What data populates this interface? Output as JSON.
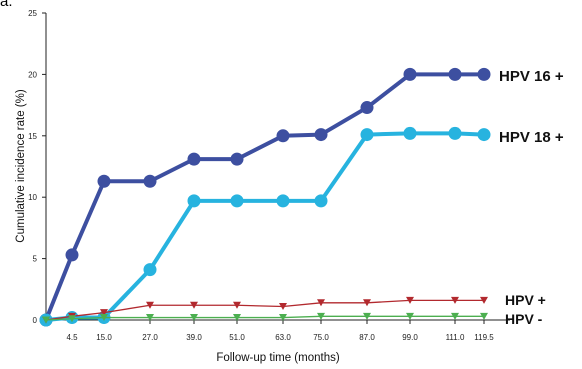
{
  "panel_label": "a.",
  "chart_data": {
    "type": "line",
    "title": "",
    "xlabel": "Follow-up time (months)",
    "ylabel": "Cumulative incidence rate (%)",
    "ylim": [
      0,
      25
    ],
    "yticks": [
      "0",
      "5",
      "10",
      "15",
      "20",
      "25"
    ],
    "x": [
      "4.5",
      "15.0",
      "27.0",
      "39.0",
      "51.0",
      "63.0",
      "75.0",
      "87.0",
      "99.0",
      "111.0",
      "119.5"
    ],
    "series": [
      {
        "name": "HPV 16 +",
        "color": "#3d4fa0",
        "marker": "circle",
        "origin": 0,
        "values": [
          5.3,
          11.3,
          11.3,
          13.1,
          13.1,
          15.0,
          15.1,
          17.3,
          20.0,
          20.0,
          20.0
        ]
      },
      {
        "name": "HPV 18 +",
        "color": "#27b3df",
        "marker": "circle",
        "origin": 0,
        "values": [
          0.2,
          0.2,
          4.1,
          9.7,
          9.7,
          9.7,
          9.7,
          15.1,
          15.2,
          15.2,
          15.1
        ]
      },
      {
        "name": "HPV +",
        "color": "#b2292e",
        "marker": "triangle-down",
        "origin": 0,
        "values": [
          0.3,
          0.6,
          1.2,
          1.2,
          1.2,
          1.1,
          1.4,
          1.4,
          1.6,
          1.6,
          1.6
        ]
      },
      {
        "name": "HPV -",
        "color": "#4caf50",
        "marker": "triangle-down",
        "origin": 0,
        "values": [
          0.1,
          0.2,
          0.2,
          0.2,
          0.2,
          0.2,
          0.3,
          0.3,
          0.3,
          0.3,
          0.3
        ]
      }
    ],
    "legend": "right-of-lines",
    "grid": false
  }
}
